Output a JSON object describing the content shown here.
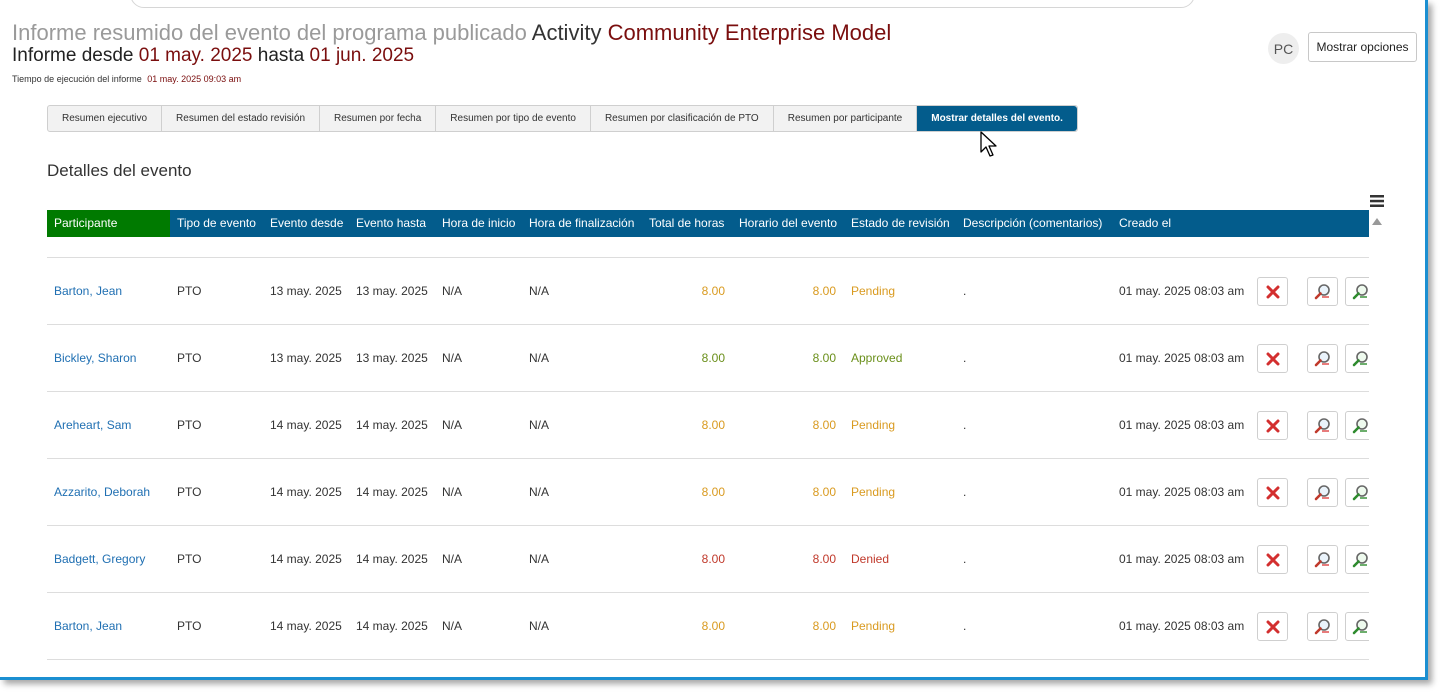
{
  "header": {
    "title_prefix": "Informe resumido del evento del programa publicado",
    "title_activity": "Activity",
    "title_org": "Community Enterprise Model",
    "range_from_label": "Informe desde",
    "range_from": "01 may. 2025",
    "range_to_label": "hasta",
    "range_to": "01 jun. 2025",
    "run_time_label": "Tiempo de ejecución del informe",
    "run_time": "01 may. 2025 09:03 am",
    "avatar": "PC",
    "options_button": "Mostrar opciones"
  },
  "tabs": [
    {
      "label": "Resumen ejecutivo",
      "active": false
    },
    {
      "label": "Resumen del estado revisión",
      "active": false
    },
    {
      "label": "Resumen por fecha",
      "active": false
    },
    {
      "label": "Resumen por tipo de evento",
      "active": false
    },
    {
      "label": "Resumen por clasificación de PTO",
      "active": false
    },
    {
      "label": "Resumen por participante",
      "active": false
    },
    {
      "label": "Mostrar detalles del evento.",
      "active": true
    }
  ],
  "section_title": "Detalles del evento",
  "columns": [
    "Participante",
    "Tipo de evento",
    "Evento desde",
    "Evento hasta",
    "Hora de inicio",
    "Hora de finalización",
    "Total de horas",
    "Horario del evento",
    "Estado de revisión",
    "Descripción (comentarios)",
    "Creado el"
  ],
  "rows": [
    {
      "name": "Barton, Jean",
      "type": "PTO",
      "from": "13 may. 2025",
      "to": "13 may. 2025",
      "start": "N/A",
      "end": "N/A",
      "total": "8.00",
      "schedule": "8.00",
      "status": "Pending",
      "status_class": "pending",
      "desc": ".",
      "created": "01 may. 2025 08:03 am"
    },
    {
      "name": "Bickley, Sharon",
      "type": "PTO",
      "from": "13 may. 2025",
      "to": "13 may. 2025",
      "start": "N/A",
      "end": "N/A",
      "total": "8.00",
      "schedule": "8.00",
      "status": "Approved",
      "status_class": "approved",
      "desc": ".",
      "created": "01 may. 2025 08:03 am"
    },
    {
      "name": "Areheart, Sam",
      "type": "PTO",
      "from": "14 may. 2025",
      "to": "14 may. 2025",
      "start": "N/A",
      "end": "N/A",
      "total": "8.00",
      "schedule": "8.00",
      "status": "Pending",
      "status_class": "pending",
      "desc": ".",
      "created": "01 may. 2025 08:03 am"
    },
    {
      "name": "Azzarito, Deborah",
      "type": "PTO",
      "from": "14 may. 2025",
      "to": "14 may. 2025",
      "start": "N/A",
      "end": "N/A",
      "total": "8.00",
      "schedule": "8.00",
      "status": "Pending",
      "status_class": "pending",
      "desc": ".",
      "created": "01 may. 2025 08:03 am"
    },
    {
      "name": "Badgett, Gregory",
      "type": "PTO",
      "from": "14 may. 2025",
      "to": "14 may. 2025",
      "start": "N/A",
      "end": "N/A",
      "total": "8.00",
      "schedule": "8.00",
      "status": "Denied",
      "status_class": "denied",
      "desc": ".",
      "created": "01 may. 2025 08:03 am"
    },
    {
      "name": "Barton, Jean",
      "type": "PTO",
      "from": "14 may. 2025",
      "to": "14 may. 2025",
      "start": "N/A",
      "end": "N/A",
      "total": "8.00",
      "schedule": "8.00",
      "status": "Pending",
      "status_class": "pending",
      "desc": ".",
      "created": "01 may. 2025 08:03 am"
    }
  ],
  "colors": {
    "header_bg": "#035c8c",
    "first_header_bg": "#007a00",
    "pending": "#d99a1f",
    "approved": "#6a8f1a",
    "denied": "#c0392b",
    "link": "#1f6fb2",
    "title_accent": "#7a0e0e"
  },
  "icons": {
    "delete": "delete-x-icon",
    "view": "magnifier-red-icon",
    "view_alt": "magnifier-green-icon",
    "menu": "hamburger-menu-icon",
    "scroll_up": "scroll-up-arrow-icon",
    "cursor": "mouse-pointer-icon"
  }
}
